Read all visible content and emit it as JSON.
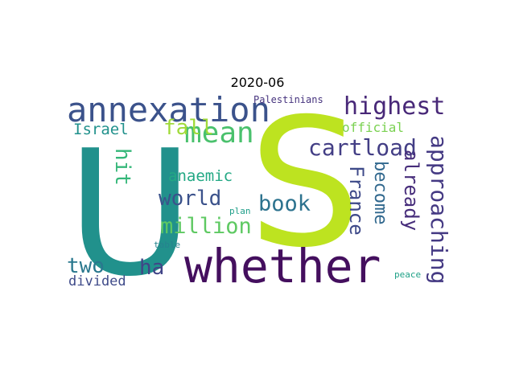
{
  "title": "2020-06",
  "words": [
    {
      "text": "S",
      "color": "#bde320"
    },
    {
      "text": "U",
      "color": "#21918c"
    },
    {
      "text": "whether",
      "color": "#440f5e"
    },
    {
      "text": "annexation",
      "color": "#3b528b"
    },
    {
      "text": "mean",
      "color": "#4ac16d"
    },
    {
      "text": "highest",
      "color": "#482878"
    },
    {
      "text": "cartload",
      "color": "#433e85"
    },
    {
      "text": "approaching",
      "color": "#443983"
    },
    {
      "text": "already",
      "color": "#472d7b"
    },
    {
      "text": "France",
      "color": "#3e4a89"
    },
    {
      "text": "become",
      "color": "#31688e"
    },
    {
      "text": "book",
      "color": "#2c728e"
    },
    {
      "text": "million",
      "color": "#5ec962"
    },
    {
      "text": "world",
      "color": "#3b528b"
    },
    {
      "text": "fall",
      "color": "#a0da39"
    },
    {
      "text": "hit",
      "color": "#35b779"
    },
    {
      "text": "anaemic",
      "color": "#22a884"
    },
    {
      "text": "two",
      "color": "#2a788e"
    },
    {
      "text": "ha",
      "color": "#414487"
    },
    {
      "text": "Israel",
      "color": "#21918c"
    },
    {
      "text": "official",
      "color": "#7ad151"
    },
    {
      "text": "Palestinians",
      "color": "#46337e"
    },
    {
      "text": "divided",
      "color": "#3e4a89"
    },
    {
      "text": "plan",
      "color": "#1f9e89"
    },
    {
      "text": "table",
      "color": "#26828e"
    },
    {
      "text": "peace",
      "color": "#1fa187"
    }
  ]
}
